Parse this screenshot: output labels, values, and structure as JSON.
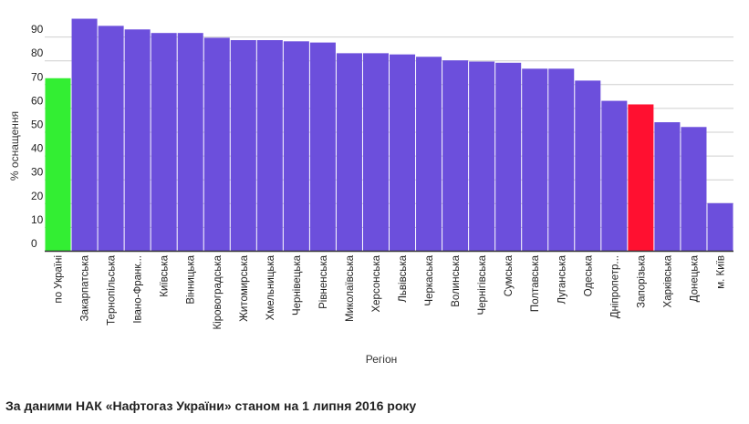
{
  "chart_data": {
    "type": "bar",
    "xlabel": "Регіон",
    "ylabel": "% оснащення",
    "ylim": [
      0,
      100
    ],
    "yticks": [
      0,
      10,
      20,
      30,
      40,
      50,
      60,
      70,
      80,
      90
    ],
    "grid": true,
    "legend": "none",
    "categories": [
      "по Україні",
      "Закарпатська",
      "Тернопільська",
      "Івано-Франк...",
      "Київська",
      "Вінницька",
      "Кіровоградська",
      "Житомирська",
      "Хмельницька",
      "Чернівецька",
      "Рівненська",
      "Миколаївська",
      "Херсонська",
      "Львівська",
      "Черкаська",
      "Волинська",
      "Чернігівська",
      "Сумська",
      "Полтавська",
      "Луганська",
      "Одеська",
      "Дніпропетр...",
      "Запорізька",
      "Харківська",
      "Донецька",
      "м. Київ"
    ],
    "values": [
      72.5,
      97.5,
      94.5,
      93.0,
      91.5,
      91.5,
      89.5,
      88.5,
      88.5,
      88.0,
      87.5,
      83.0,
      83.0,
      82.5,
      81.5,
      80.0,
      79.5,
      79.0,
      76.5,
      76.5,
      71.5,
      63.0,
      61.5,
      54.0,
      52.0,
      20.0
    ],
    "colors": [
      "#33ee33",
      "#6c4fdc",
      "#6c4fdc",
      "#6c4fdc",
      "#6c4fdc",
      "#6c4fdc",
      "#6c4fdc",
      "#6c4fdc",
      "#6c4fdc",
      "#6c4fdc",
      "#6c4fdc",
      "#6c4fdc",
      "#6c4fdc",
      "#6c4fdc",
      "#6c4fdc",
      "#6c4fdc",
      "#6c4fdc",
      "#6c4fdc",
      "#6c4fdc",
      "#6c4fdc",
      "#6c4fdc",
      "#6c4fdc",
      "#ff1030",
      "#6c4fdc",
      "#6c4fdc",
      "#6c4fdc"
    ]
  },
  "footer": {
    "source": "За даними НАК «Нафтогаз України» станом на 1 липня 2016 року"
  }
}
